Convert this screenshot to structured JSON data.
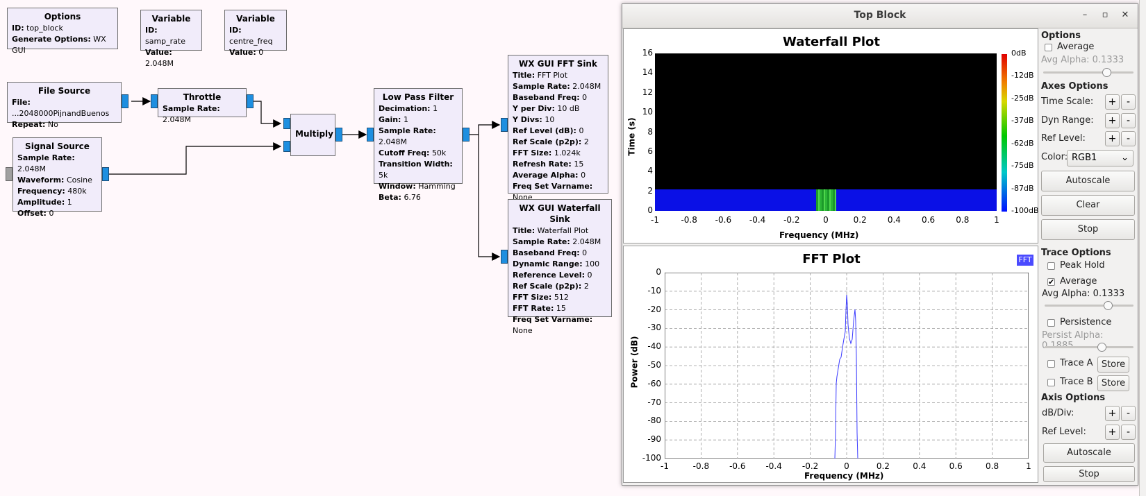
{
  "flowgraph": {
    "options": {
      "title": "Options",
      "id_label": "ID:",
      "id": "top_block",
      "gen_label": "Generate Options:",
      "gen": "WX GUI"
    },
    "var_samp": {
      "title": "Variable",
      "id_label": "ID:",
      "id": "samp_rate",
      "val_label": "Value:",
      "val": "2.048M"
    },
    "var_centre": {
      "title": "Variable",
      "id_label": "ID:",
      "id": "centre_freq",
      "val_label": "Value:",
      "val": "0"
    },
    "file_source": {
      "title": "File Source",
      "rows": [
        [
          "File:",
          "...2048000PijnandBuenos"
        ],
        [
          "Repeat:",
          "No"
        ]
      ]
    },
    "throttle": {
      "title": "Throttle",
      "rows": [
        [
          "Sample Rate:",
          "2.048M"
        ]
      ]
    },
    "signal_source": {
      "title": "Signal Source",
      "rows": [
        [
          "Sample Rate:",
          "2.048M"
        ],
        [
          "Waveform:",
          "Cosine"
        ],
        [
          "Frequency:",
          "480k"
        ],
        [
          "Amplitude:",
          "1"
        ],
        [
          "Offset:",
          "0"
        ]
      ]
    },
    "multiply": {
      "title": "Multiply"
    },
    "lpf": {
      "title": "Low Pass Filter",
      "rows": [
        [
          "Decimation:",
          "1"
        ],
        [
          "Gain:",
          "1"
        ],
        [
          "Sample Rate:",
          "2.048M"
        ],
        [
          "Cutoff Freq:",
          "50k"
        ],
        [
          "Transition Width:",
          "5k"
        ],
        [
          "Window:",
          "Hamming"
        ],
        [
          "Beta:",
          "6.76"
        ]
      ]
    },
    "fft_sink": {
      "title": "WX GUI FFT Sink",
      "rows": [
        [
          "Title:",
          "FFT Plot"
        ],
        [
          "Sample Rate:",
          "2.048M"
        ],
        [
          "Baseband Freq:",
          "0"
        ],
        [
          "Y per Div:",
          "10 dB"
        ],
        [
          "Y Divs:",
          "10"
        ],
        [
          "Ref Level (dB):",
          "0"
        ],
        [
          "Ref Scale (p2p):",
          "2"
        ],
        [
          "FFT Size:",
          "1.024k"
        ],
        [
          "Refresh Rate:",
          "15"
        ],
        [
          "Average Alpha:",
          "0"
        ],
        [
          "Freq Set Varname:",
          "None"
        ]
      ]
    },
    "wf_sink": {
      "title": "WX GUI Waterfall Sink",
      "rows": [
        [
          "Title:",
          "Waterfall Plot"
        ],
        [
          "Sample Rate:",
          "2.048M"
        ],
        [
          "Baseband Freq:",
          "0"
        ],
        [
          "Dynamic Range:",
          "100"
        ],
        [
          "Reference Level:",
          "0"
        ],
        [
          "Ref Scale (p2p):",
          "2"
        ],
        [
          "FFT Size:",
          "512"
        ],
        [
          "FFT Rate:",
          "15"
        ],
        [
          "Freq Set Varname:",
          "None"
        ]
      ]
    }
  },
  "window": {
    "title": "Top Block",
    "minimize": "–",
    "maximize": "▫",
    "close": "✕"
  },
  "waterfall": {
    "title": "Waterfall Plot",
    "ylabel": "Time (s)",
    "xlabel": "Frequency (MHz)",
    "yticks": [
      "16",
      "14",
      "12",
      "10",
      "8",
      "6",
      "4",
      "2",
      "0"
    ],
    "xticks": [
      "-1",
      "-0.8",
      "-0.6",
      "-0.4",
      "-0.2",
      "0",
      "0.2",
      "0.4",
      "0.6",
      "0.8",
      "1"
    ],
    "colorbar": [
      "0dB",
      "-12dB",
      "-25dB",
      "-37dB",
      "-62dB",
      "-75dB",
      "-87dB",
      "-100dB"
    ],
    "controls": {
      "options_title": "Options",
      "average": "Average",
      "avg_alpha": "Avg Alpha: 0.1333",
      "avg_alpha_value": 0.1333,
      "axes_title": "Axes Options",
      "time_scale": "Time Scale:",
      "dyn_range": "Dyn Range:",
      "ref_level": "Ref Level:",
      "color_label": "Color:",
      "color_value": "RGB1",
      "autoscale": "Autoscale",
      "clear": "Clear",
      "stop": "Stop",
      "plus": "+",
      "minus": "-"
    }
  },
  "fft": {
    "title": "FFT Plot",
    "legend": "FFT",
    "legend_color": "#4a4aff",
    "ylabel": "Power (dB)",
    "xlabel": "Frequency (MHz)",
    "yticks": [
      "0",
      "-10",
      "-20",
      "-30",
      "-40",
      "-50",
      "-60",
      "-70",
      "-80",
      "-90",
      "-100"
    ],
    "xticks": [
      "-1",
      "-0.8",
      "-0.6",
      "-0.4",
      "-0.2",
      "0",
      "0.2",
      "0.4",
      "0.6",
      "0.8",
      "1"
    ],
    "controls": {
      "trace_title": "Trace Options",
      "peak_hold": "Peak Hold",
      "average": "Average",
      "avg_alpha": "Avg Alpha: 0.1333",
      "avg_alpha_value": 0.1333,
      "persistence": "Persistence",
      "persist_alpha": "Persist Alpha: 0.1885",
      "persist_alpha_value": 0.1885,
      "trace_a": "Trace A",
      "trace_b": "Trace B",
      "store": "Store",
      "axis_title": "Axis Options",
      "db_div": "dB/Div:",
      "ref_level": "Ref Level:",
      "autoscale": "Autoscale",
      "stop": "Stop",
      "plus": "+",
      "minus": "-"
    }
  }
}
